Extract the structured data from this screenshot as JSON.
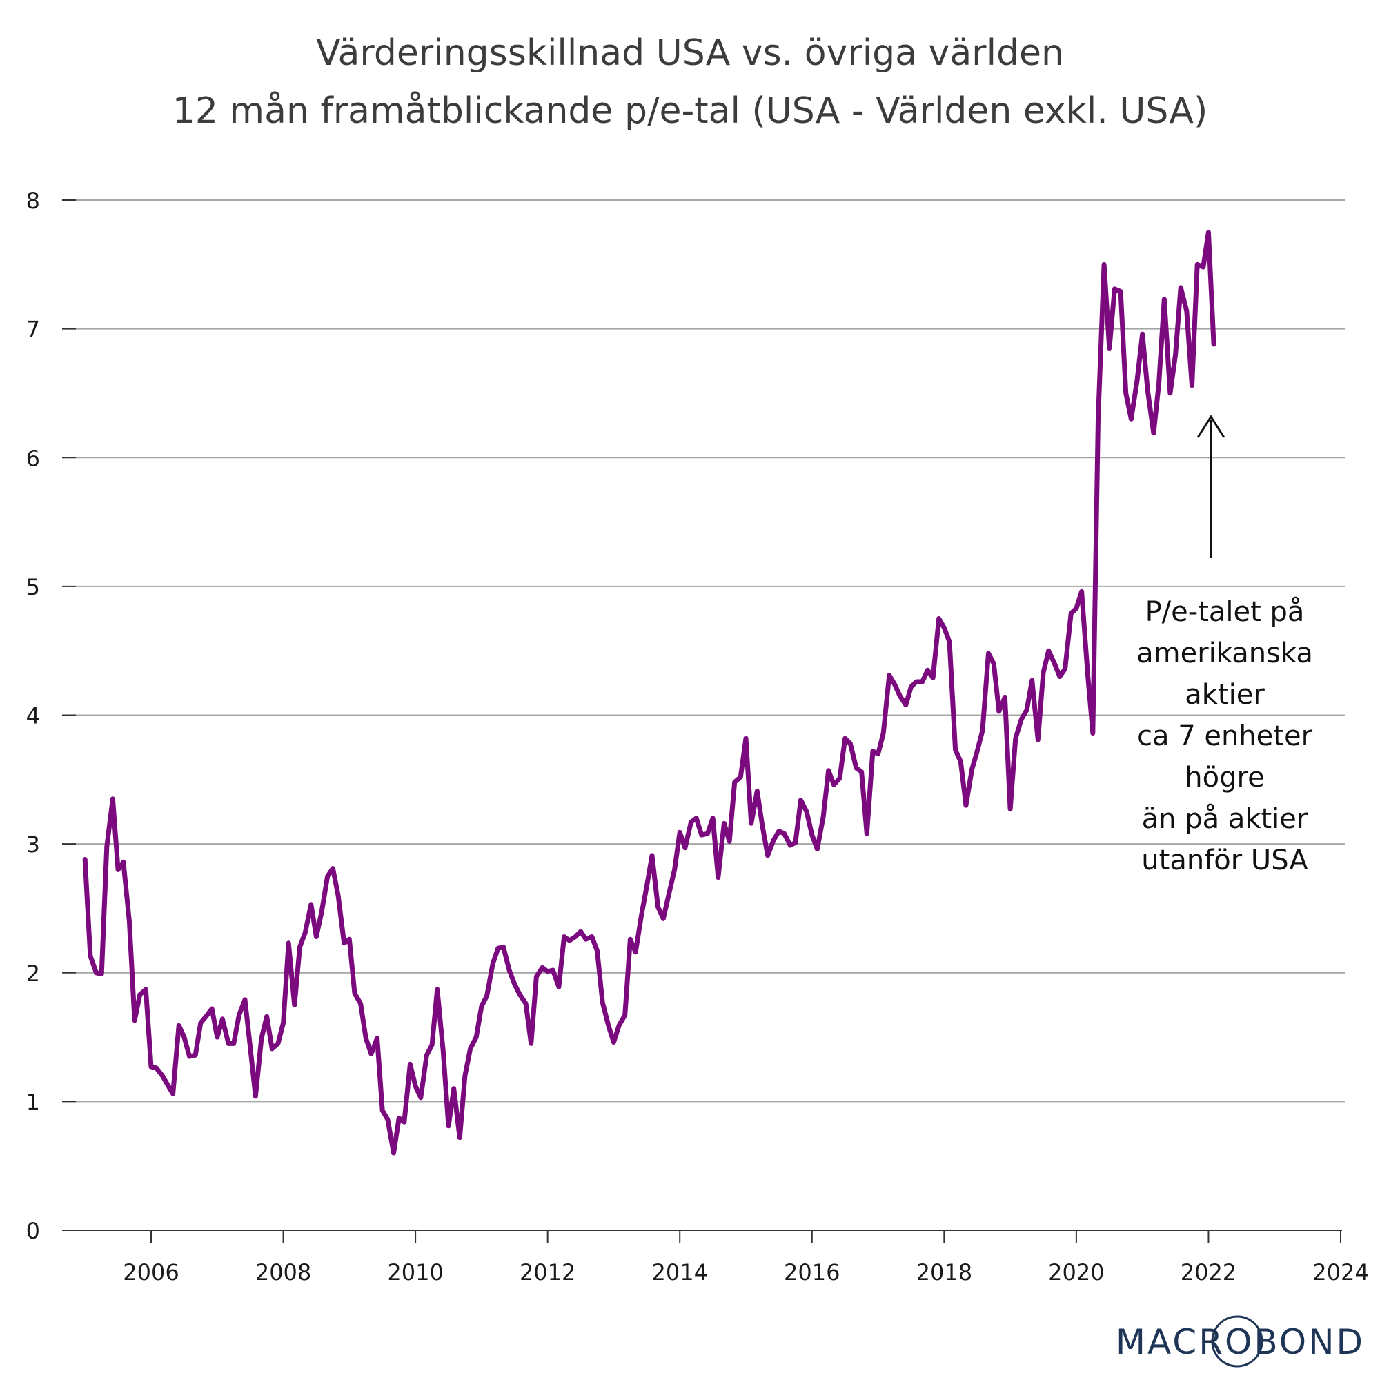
{
  "chart_data": {
    "type": "line",
    "title": "Värderingsskillnad USA vs. övriga världen",
    "subtitle": "12 mån framåtblickande p/e-tal (USA - Världen exkl. USA)",
    "xlabel": "",
    "ylabel": "",
    "xlim": [
      2004.9,
      2024.0
    ],
    "ylim": [
      0,
      8
    ],
    "x_ticks": [
      "2006",
      "2008",
      "2010",
      "2012",
      "2014",
      "2016",
      "2018",
      "2020",
      "2022",
      "2024"
    ],
    "y_ticks": [
      "0",
      "1",
      "2",
      "3",
      "4",
      "5",
      "6",
      "7",
      "8"
    ],
    "grid": true,
    "legend": "none",
    "series": [
      {
        "name": "USA - Världen exkl. USA",
        "color": "#7b0a7f",
        "x": [
          2005.0,
          2005.08,
          2005.17,
          2005.25,
          2005.33,
          2005.42,
          2005.5,
          2005.58,
          2005.67,
          2005.75,
          2005.83,
          2005.92,
          2006.0,
          2006.08,
          2006.17,
          2006.25,
          2006.33,
          2006.42,
          2006.5,
          2006.58,
          2006.67,
          2006.75,
          2006.83,
          2006.92,
          2007.0,
          2007.08,
          2007.17,
          2007.25,
          2007.33,
          2007.42,
          2007.5,
          2007.58,
          2007.67,
          2007.75,
          2007.83,
          2007.92,
          2008.0,
          2008.08,
          2008.17,
          2008.25,
          2008.33,
          2008.42,
          2008.5,
          2008.58,
          2008.67,
          2008.75,
          2008.83,
          2008.92,
          2009.0,
          2009.08,
          2009.17,
          2009.25,
          2009.33,
          2009.42,
          2009.5,
          2009.58,
          2009.67,
          2009.75,
          2009.83,
          2009.92,
          2010.0,
          2010.08,
          2010.17,
          2010.25,
          2010.33,
          2010.42,
          2010.5,
          2010.58,
          2010.67,
          2010.75,
          2010.83,
          2010.92,
          2011.0,
          2011.08,
          2011.17,
          2011.25,
          2011.33,
          2011.42,
          2011.5,
          2011.58,
          2011.67,
          2011.75,
          2011.83,
          2011.92,
          2012.0,
          2012.08,
          2012.17,
          2012.25,
          2012.33,
          2012.42,
          2012.5,
          2012.58,
          2012.67,
          2012.75,
          2012.83,
          2012.92,
          2013.0,
          2013.08,
          2013.17,
          2013.25,
          2013.33,
          2013.42,
          2013.5,
          2013.58,
          2013.67,
          2013.75,
          2013.83,
          2013.92,
          2014.0,
          2014.08,
          2014.17,
          2014.25,
          2014.33,
          2014.42,
          2014.5,
          2014.58,
          2014.67,
          2014.75,
          2014.83,
          2014.92,
          2015.0,
          2015.08,
          2015.17,
          2015.25,
          2015.33,
          2015.42,
          2015.5,
          2015.58,
          2015.67,
          2015.75,
          2015.83,
          2015.92,
          2016.0,
          2016.08,
          2016.17,
          2016.25,
          2016.33,
          2016.42,
          2016.5,
          2016.58,
          2016.67,
          2016.75,
          2016.83,
          2016.92,
          2017.0,
          2017.08,
          2017.17,
          2017.25,
          2017.33,
          2017.42,
          2017.5,
          2017.58,
          2017.67,
          2017.75,
          2017.83,
          2017.92,
          2018.0,
          2018.08,
          2018.17,
          2018.25,
          2018.33,
          2018.42,
          2018.5,
          2018.58,
          2018.67,
          2018.75,
          2018.83,
          2018.92,
          2019.0,
          2019.08,
          2019.17,
          2019.25,
          2019.33,
          2019.42,
          2019.5,
          2019.58,
          2019.67,
          2019.75,
          2019.83,
          2019.92,
          2020.0,
          2020.08,
          2020.17,
          2020.25,
          2020.33,
          2020.42,
          2020.5,
          2020.58,
          2020.67,
          2020.75,
          2020.83,
          2020.92,
          2021.0,
          2021.08,
          2021.17,
          2021.25,
          2021.33,
          2021.42,
          2021.5,
          2021.58,
          2021.67,
          2021.75,
          2021.83,
          2021.92,
          2022.0,
          2022.08
        ],
        "values": [
          2.88,
          2.13,
          2.0,
          1.99,
          2.98,
          3.35,
          2.8,
          2.86,
          2.4,
          1.63,
          1.83,
          1.87,
          1.27,
          1.26,
          1.2,
          1.13,
          1.06,
          1.59,
          1.5,
          1.35,
          1.36,
          1.61,
          1.66,
          1.72,
          1.5,
          1.64,
          1.45,
          1.45,
          1.67,
          1.79,
          1.42,
          1.04,
          1.49,
          1.66,
          1.41,
          1.45,
          1.61,
          2.23,
          1.75,
          2.2,
          2.31,
          2.53,
          2.28,
          2.47,
          2.75,
          2.81,
          2.6,
          2.23,
          2.26,
          1.84,
          1.76,
          1.49,
          1.37,
          1.49,
          0.93,
          0.86,
          0.6,
          0.87,
          0.84,
          1.29,
          1.12,
          1.03,
          1.36,
          1.44,
          1.87,
          1.39,
          0.81,
          1.1,
          0.72,
          1.2,
          1.41,
          1.5,
          1.74,
          1.82,
          2.07,
          2.19,
          2.2,
          2.02,
          1.91,
          1.83,
          1.76,
          1.45,
          1.97,
          2.04,
          2.01,
          2.02,
          1.89,
          2.28,
          2.25,
          2.28,
          2.32,
          2.26,
          2.28,
          2.17,
          1.77,
          1.59,
          1.46,
          1.59,
          1.67,
          2.26,
          2.16,
          2.45,
          2.67,
          2.91,
          2.51,
          2.42,
          2.6,
          2.8,
          3.09,
          2.97,
          3.17,
          3.2,
          3.07,
          3.08,
          3.2,
          2.74,
          3.16,
          3.02,
          3.48,
          3.52,
          3.82,
          3.16,
          3.41,
          3.14,
          2.91,
          3.03,
          3.1,
          3.08,
          2.99,
          3.01,
          3.34,
          3.25,
          3.07,
          2.96,
          3.21,
          3.57,
          3.46,
          3.51,
          3.82,
          3.78,
          3.59,
          3.56,
          3.08,
          3.72,
          3.7,
          3.86,
          4.31,
          4.24,
          4.15,
          4.08,
          4.22,
          4.26,
          4.26,
          4.35,
          4.29,
          4.75,
          4.68,
          4.57,
          3.73,
          3.64,
          3.3,
          3.58,
          3.72,
          3.88,
          4.48,
          4.4,
          4.03,
          4.14,
          3.27,
          3.82,
          3.97,
          4.04,
          4.27,
          3.81,
          4.33,
          4.5,
          4.4,
          4.3,
          4.36,
          4.79,
          4.83,
          4.96,
          4.33,
          3.86,
          6.3,
          7.5,
          6.85,
          7.31,
          7.29,
          6.5,
          6.3,
          6.6,
          6.96,
          6.52,
          6.19,
          6.58,
          7.23,
          6.5,
          6.8,
          7.32,
          7.14,
          6.56,
          7.5,
          7.48,
          7.75,
          6.88
        ]
      }
    ],
    "annotation": {
      "lines": [
        "P/e-talet på",
        "amerikanska",
        "aktier",
        "ca 7 enheter",
        "högre",
        "än på aktier",
        "utanför USA"
      ]
    },
    "brand": "MACROBOND"
  }
}
